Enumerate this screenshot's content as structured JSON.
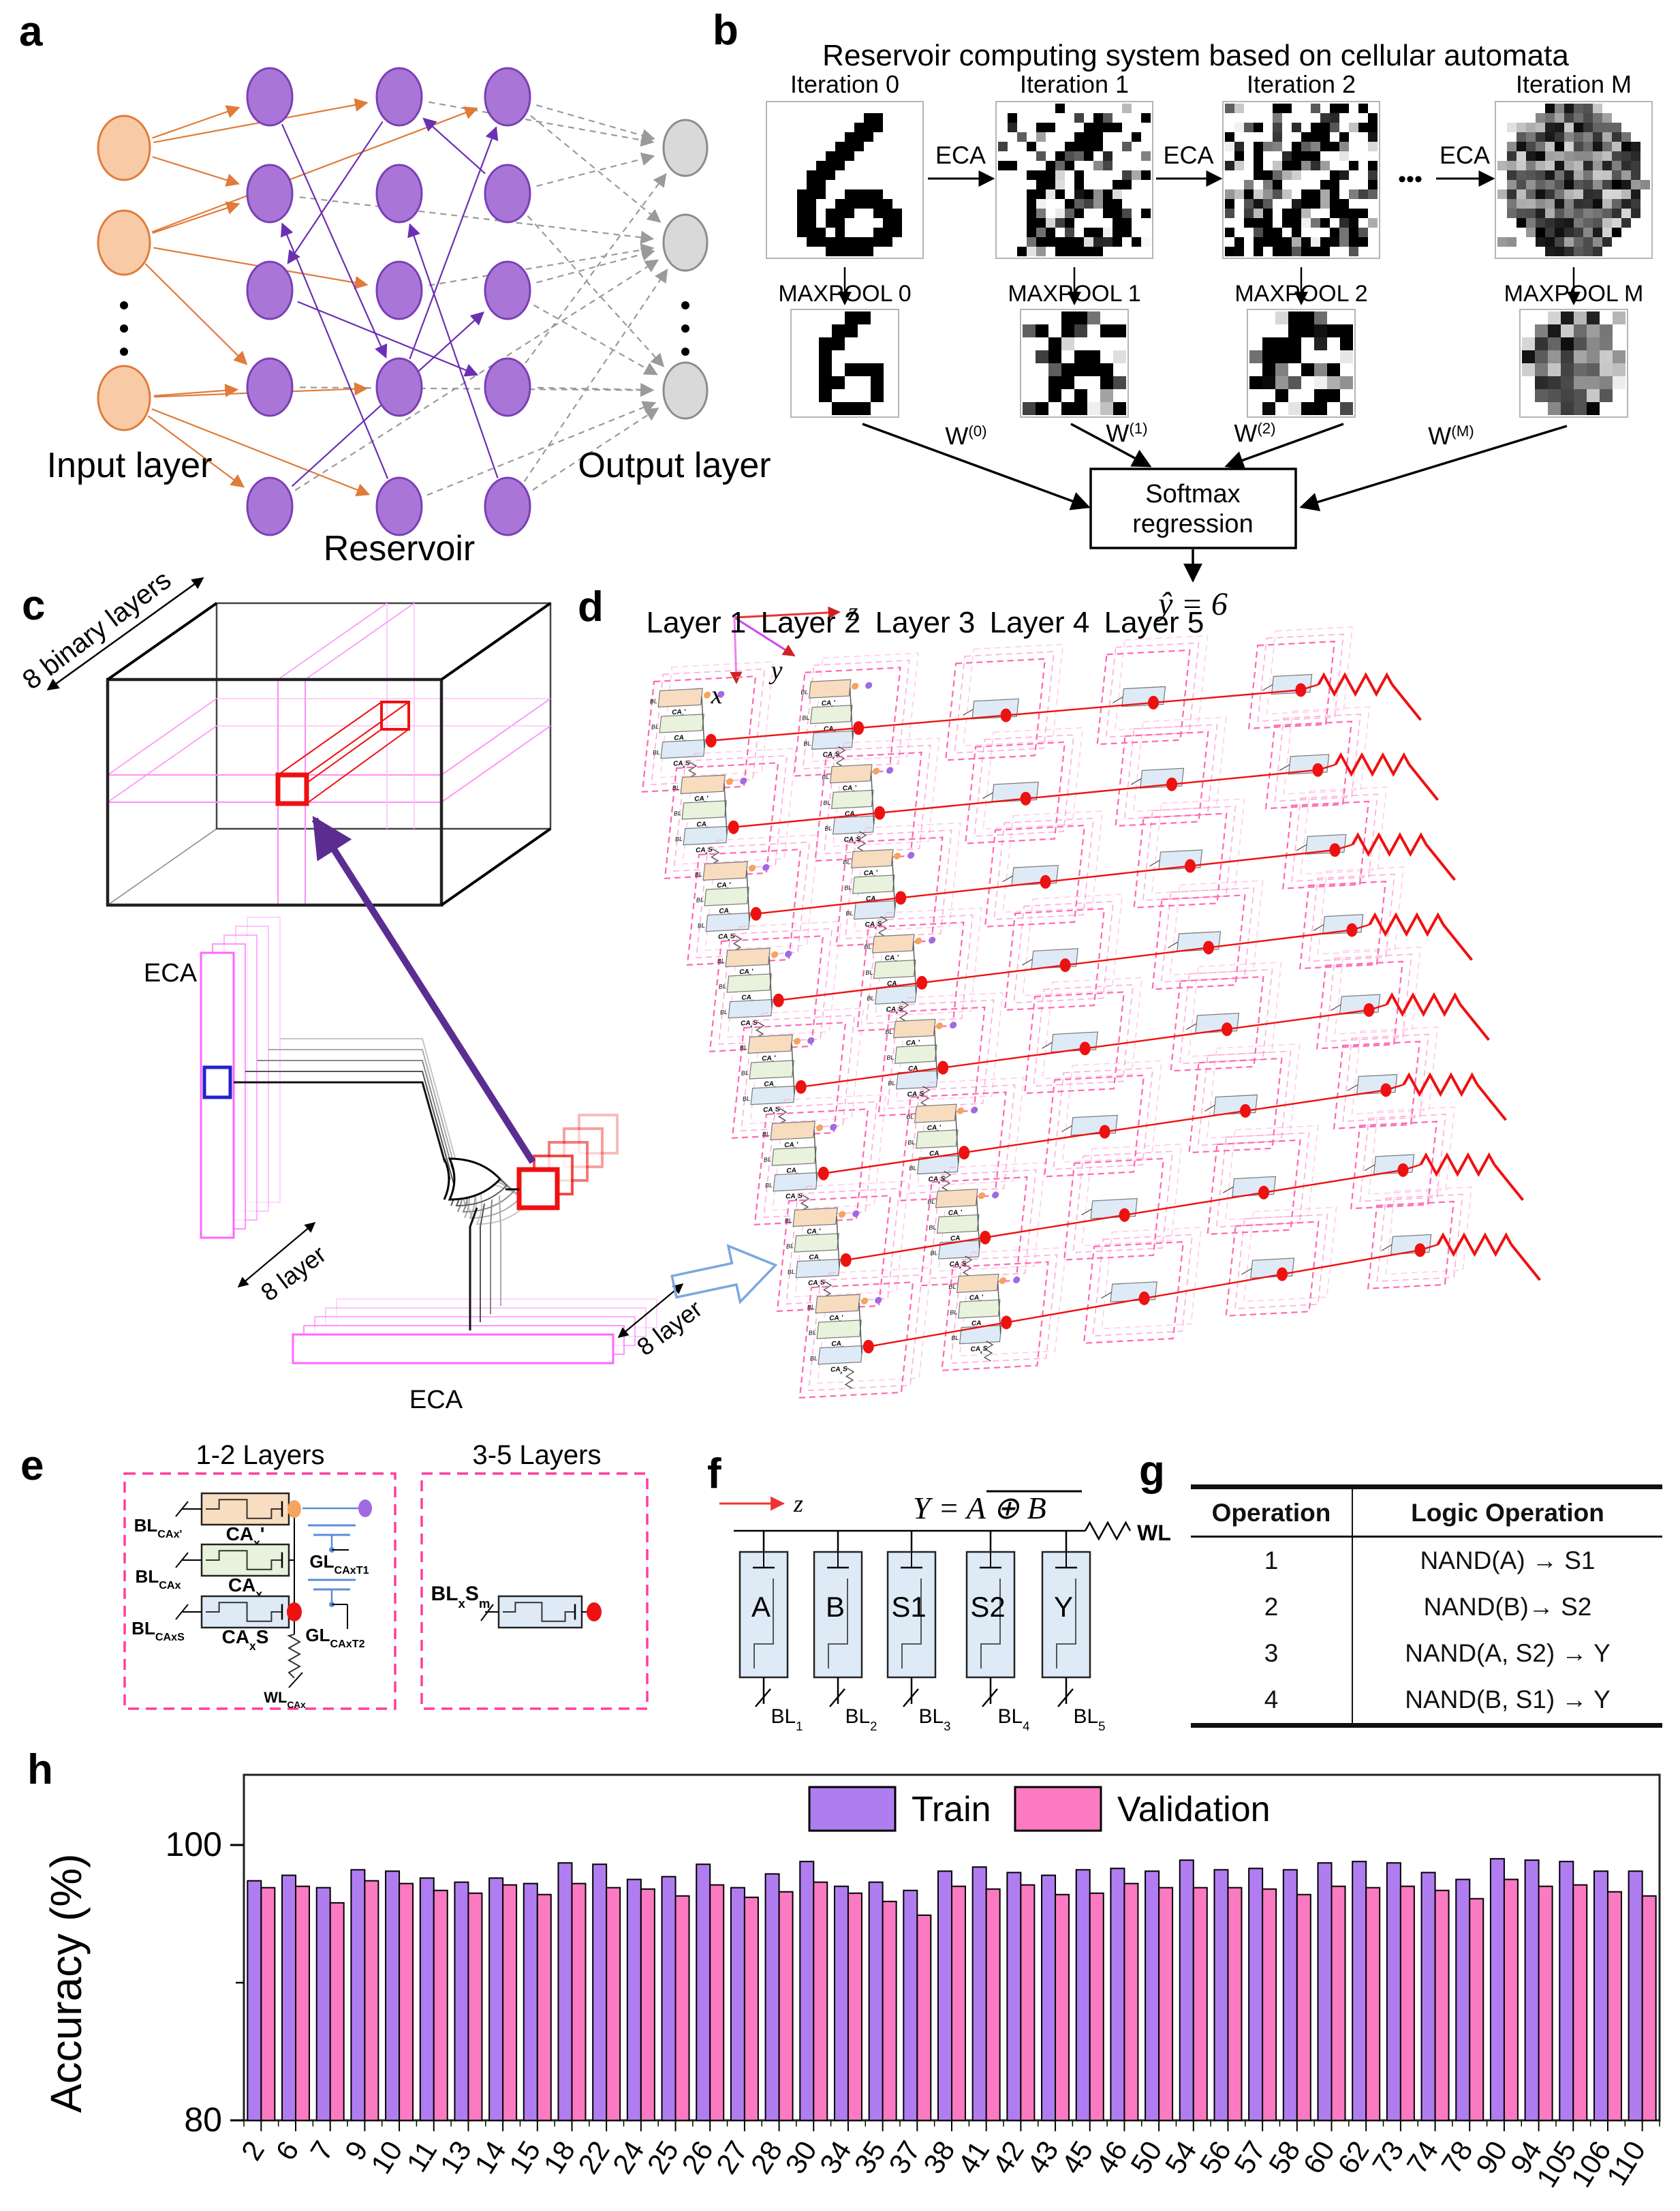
{
  "panels": {
    "a": {
      "label": "a",
      "input_label": "Input layer",
      "reservoir_label": "Reservoir",
      "output_label": "Output layer",
      "colors": {
        "input_fill": "#f8cba6",
        "input_stroke": "#e07b39",
        "res_fill": "#a976d8",
        "res_stroke": "#7a3fb5",
        "out_fill": "#d9d9d9",
        "out_stroke": "#8c8c8c",
        "orange_edge": "#e07b39",
        "purple_edge": "#6b2fb3",
        "gray_edge": "#9a9a9a"
      },
      "edges_orange": [
        [
          "i0",
          "r00"
        ],
        [
          "i0",
          "r10"
        ],
        [
          "i0",
          "r01"
        ],
        [
          "i1",
          "r01"
        ],
        [
          "i1",
          "r03"
        ],
        [
          "i1",
          "r12"
        ],
        [
          "i1",
          "r20"
        ],
        [
          "i2",
          "r03"
        ],
        [
          "i2",
          "r04"
        ],
        [
          "i2",
          "r13"
        ],
        [
          "i2",
          "r14"
        ]
      ],
      "edges_purple": [
        [
          "r00",
          "r13"
        ],
        [
          "r10",
          "r02"
        ],
        [
          "r21",
          "r10"
        ],
        [
          "r02",
          "r23"
        ],
        [
          "r14",
          "r01"
        ],
        [
          "r04",
          "r22"
        ],
        [
          "r13",
          "r20"
        ],
        [
          "r24",
          "r11"
        ]
      ],
      "edges_gray": [
        [
          "r20",
          "o0"
        ],
        [
          "r20",
          "o1"
        ],
        [
          "r21",
          "o0"
        ],
        [
          "r21",
          "o2"
        ],
        [
          "r22",
          "o1"
        ],
        [
          "r22",
          "o2"
        ],
        [
          "r23",
          "o0"
        ],
        [
          "r23",
          "o2"
        ],
        [
          "r24",
          "o1"
        ],
        [
          "r24",
          "o2"
        ],
        [
          "r10",
          "o0"
        ],
        [
          "r12",
          "o1"
        ],
        [
          "r14",
          "o2"
        ],
        [
          "r01",
          "o1"
        ],
        [
          "r03",
          "o2"
        ],
        [
          "r04",
          "o1"
        ]
      ]
    },
    "b": {
      "label": "b",
      "title": "Reservoir computing system based on cellular automata",
      "eca_label": "ECA",
      "dots": "•••",
      "iterations": [
        {
          "label": "Iteration 0",
          "pool_label": "MAXPOOL 0",
          "w_base": "W",
          "w_sup": "(0)",
          "noise": 0,
          "pool_noise": 0,
          "seed": 3
        },
        {
          "label": "Iteration 1",
          "pool_label": "MAXPOOL 1",
          "w_base": "W",
          "w_sup": "(1)",
          "noise": 0.28,
          "pool_noise": 0.3,
          "seed": 11
        },
        {
          "label": "Iteration 2",
          "pool_label": "MAXPOOL 2",
          "w_base": "W",
          "w_sup": "(2)",
          "noise": 0.42,
          "pool_noise": 0.45,
          "seed": 23
        },
        {
          "label": "Iteration M",
          "pool_label": "MAXPOOL M",
          "w_base": "W",
          "w_sup": "(M)",
          "noise": 0.78,
          "pool_noise": 0.85,
          "seed": 41
        }
      ],
      "softmax_line1": "Softmax",
      "softmax_line2": "regression",
      "prediction": "ŷ = 6",
      "digit16": [
        "................",
        "..........##....",
        ".........###....",
        "........###.....",
        ".......###......",
        "......###.......",
        ".....###........",
        "....###.........",
        "....##..........",
        "...###..####....",
        "...##..######...",
        "...##.###..###..",
        "...##.##....##..",
        "...###.#...###..",
        "....#########...",
        "......#####....."
      ],
      "digit8": [
        "....##..",
        "...##...",
        "..##....",
        "..#.....",
        "..#.###.",
        "..##..#.",
        "..#...#.",
        "...###.."
      ]
    },
    "c": {
      "label": "c",
      "binary_layers_label": "8 binary layers",
      "eca_left_label": "ECA",
      "eca_bottom_label": "ECA",
      "layer8_left_label": "8 layer",
      "layer8_bottom_label": "8 layer"
    },
    "d": {
      "label": "d",
      "axis": {
        "x": "x",
        "y": "y",
        "z": "z"
      },
      "layers": [
        "Layer 1",
        "Layer 2",
        "Layer 3",
        "Layer 4",
        "Layer 5"
      ],
      "rows": 8,
      "cell_device_labels": [
        {
          "base": "CA",
          "sub": "x",
          "post": "'"
        },
        {
          "base": "CA",
          "sub": "x",
          "post": ""
        },
        {
          "base": "CA",
          "sub": "x",
          "post": "S"
        }
      ],
      "cell_bl_label": "BL"
    },
    "e": {
      "label": "e",
      "box1_title": "1-2 Layers",
      "box2_title": "3-5 Layers",
      "box1_bl": [
        {
          "base": "BL",
          "sub": "CAx'"
        },
        {
          "base": "BL",
          "sub": "CAx"
        },
        {
          "base": "BL",
          "sub": "CAxS"
        }
      ],
      "box1_ca": [
        {
          "base": "CA",
          "sub": "x",
          "post": "'"
        },
        {
          "base": "CA",
          "sub": "x",
          "post": ""
        },
        {
          "base": "CA",
          "sub": "x",
          "post": "S"
        }
      ],
      "box1_gl": [
        {
          "base": "GL",
          "sub": "CAxT1"
        },
        {
          "base": "GL",
          "sub": "CAxT2"
        }
      ],
      "box1_wl": {
        "base": "WL",
        "sub": "CAx"
      },
      "box2_bl": {
        "base": "BL",
        "sub": "x",
        "base2": "S",
        "sub2": "m"
      }
    },
    "f": {
      "label": "f",
      "z_label": "z",
      "formula_lhs": "Y  =  ",
      "formula_rhs": "A ⊕ B",
      "wl_label": "WL",
      "devices": [
        "A",
        "B",
        "S1",
        "S2",
        "Y"
      ],
      "bit_lines": [
        {
          "base": "BL",
          "sub": "1"
        },
        {
          "base": "BL",
          "sub": "2"
        },
        {
          "base": "BL",
          "sub": "3"
        },
        {
          "base": "BL",
          "sub": "4"
        },
        {
          "base": "BL",
          "sub": "5"
        }
      ]
    },
    "g": {
      "label": "g",
      "headers": [
        "Operation",
        "Logic Operation"
      ],
      "rows": [
        [
          "1",
          "NAND(A) → S1"
        ],
        [
          "2",
          "NAND(B)→ S2"
        ],
        [
          "3",
          "NAND(A, S2) → Y"
        ],
        [
          "4",
          "NAND(B, S1) → Y"
        ]
      ]
    },
    "h": {
      "label": "h"
    }
  },
  "chart_data": {
    "type": "bar",
    "title": "",
    "xlabel": "",
    "ylabel": "Accuracy (%)",
    "ylim": [
      80,
      105
    ],
    "yticks_labeled": [
      80,
      100
    ],
    "ytick_minor": 90,
    "grid": false,
    "legend_position": "top-center-inside",
    "categories": [
      "2",
      "6",
      "7",
      "9",
      "10",
      "11",
      "13",
      "14",
      "15",
      "18",
      "22",
      "24",
      "25",
      "26",
      "27",
      "28",
      "30",
      "34",
      "35",
      "37",
      "38",
      "41",
      "42",
      "43",
      "45",
      "46",
      "50",
      "54",
      "56",
      "57",
      "58",
      "60",
      "62",
      "73",
      "74",
      "78",
      "90",
      "94",
      "105",
      "106",
      "110"
    ],
    "series": [
      {
        "name": "Train",
        "color": "#b07df0",
        "values": [
          97.4,
          97.8,
          96.9,
          98.2,
          98.1,
          97.6,
          97.3,
          97.6,
          97.2,
          98.7,
          98.6,
          97.5,
          97.7,
          98.6,
          96.9,
          97.9,
          98.8,
          97.0,
          97.3,
          96.7,
          98.1,
          98.4,
          98.0,
          97.8,
          98.2,
          98.3,
          98.1,
          98.9,
          98.2,
          98.3,
          98.2,
          98.7,
          98.8,
          98.7,
          98.0,
          97.5,
          99.0,
          98.9,
          98.8,
          98.1,
          98.1
        ]
      },
      {
        "name": "Validation",
        "color": "#fb7ac1",
        "values": [
          96.9,
          97.0,
          95.8,
          97.4,
          97.2,
          96.7,
          96.5,
          97.1,
          96.4,
          97.2,
          96.9,
          96.8,
          96.3,
          97.1,
          96.2,
          96.6,
          97.3,
          96.5,
          95.9,
          94.9,
          97.0,
          96.8,
          97.1,
          96.4,
          96.5,
          97.2,
          96.9,
          96.9,
          96.9,
          96.8,
          96.4,
          97.0,
          96.9,
          97.0,
          96.7,
          96.1,
          97.5,
          97.0,
          97.1,
          96.6,
          96.3
        ]
      }
    ]
  }
}
